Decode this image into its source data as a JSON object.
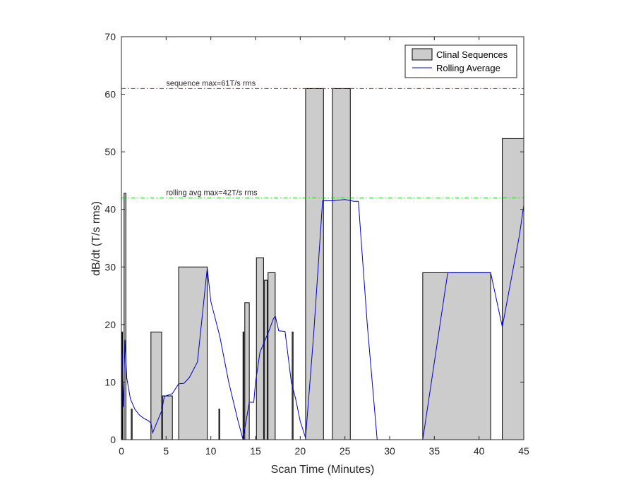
{
  "chart_data": {
    "type": "bar",
    "xlabel": "Scan Time (Minutes)",
    "ylabel": "dB/dt (T/s rms)",
    "xlim": [
      0,
      45
    ],
    "ylim": [
      0,
      70
    ],
    "xticks": [
      0,
      5,
      10,
      15,
      20,
      25,
      30,
      35,
      40,
      45
    ],
    "yticks": [
      0,
      10,
      20,
      30,
      40,
      50,
      60,
      70
    ],
    "grid": false,
    "legend_position": "top-right",
    "legend": [
      {
        "label": "Clinal Sequences",
        "kind": "patch"
      },
      {
        "label": "Rolling Average",
        "kind": "line"
      }
    ],
    "colors": {
      "bar_fill": "#cccccc",
      "bar_edge": "#000000",
      "rolling": "#0000cc",
      "seq_max_line": "#b03020",
      "avg_max_line": "#22cc22"
    },
    "sequences": [
      {
        "start": 0.05,
        "end": 0.1,
        "value": 18.7
      },
      {
        "start": 0.3,
        "end": 0.5,
        "value": 42.8
      },
      {
        "start": 1.1,
        "end": 1.2,
        "value": 5.3
      },
      {
        "start": 3.3,
        "end": 4.5,
        "value": 18.7
      },
      {
        "start": 4.6,
        "end": 5.7,
        "value": 7.6
      },
      {
        "start": 6.4,
        "end": 9.6,
        "value": 30
      },
      {
        "start": 10.9,
        "end": 11.0,
        "value": 5.3
      },
      {
        "start": 13.6,
        "end": 13.7,
        "value": 18.7
      },
      {
        "start": 13.8,
        "end": 14.3,
        "value": 23.8
      },
      {
        "start": 15.1,
        "end": 15.9,
        "value": 31.6
      },
      {
        "start": 16.0,
        "end": 16.3,
        "value": 27.7
      },
      {
        "start": 16.4,
        "end": 17.2,
        "value": 29
      },
      {
        "start": 19.1,
        "end": 19.2,
        "value": 18.7
      },
      {
        "start": 20.6,
        "end": 22.6,
        "value": 61
      },
      {
        "start": 23.6,
        "end": 25.6,
        "value": 61
      },
      {
        "start": 33.7,
        "end": 41.3,
        "value": 29
      },
      {
        "start": 42.6,
        "end": 45.0,
        "value": 52.3
      }
    ],
    "rolling_average": {
      "x": [
        0.05,
        0.2,
        0.4,
        0.5,
        0.6,
        1.0,
        1.5,
        2.0,
        2.5,
        3.0,
        3.3,
        3.5,
        4.5,
        4.8,
        5.7,
        6.4,
        7.0,
        7.6,
        8.5,
        9.6,
        10.0,
        11.0,
        12.0,
        13.0,
        13.6,
        14.3,
        14.8,
        15.0,
        15.5,
        16.5,
        17.0,
        17.2,
        17.6,
        18.3,
        19.0,
        19.5,
        20.0,
        20.6,
        21.5,
        22.5,
        22.7,
        23.6,
        25.0,
        26.0,
        26.5,
        27.5,
        28.6,
        29.5,
        33.7,
        36.5,
        41.3,
        42.6,
        44.5,
        45.0
      ],
      "y": [
        15,
        5.7,
        17.3,
        13.7,
        10.7,
        7.1,
        5.3,
        4.3,
        3.7,
        3.3,
        2.9,
        1.2,
        5.0,
        7.5,
        8.0,
        9.7,
        9.8,
        10.8,
        13.5,
        29.8,
        24.0,
        18.0,
        10.0,
        3.5,
        0.0,
        6.5,
        6.5,
        10.0,
        15.2,
        18.9,
        21.0,
        21.5,
        18.9,
        18.8,
        10.0,
        7.0,
        3.2,
        0.3,
        18.2,
        41.5,
        41.5,
        41.5,
        41.7,
        41.4,
        41.4,
        20.0,
        0.0,
        0.0,
        0.0,
        29.0,
        29.0,
        19.6,
        35.4,
        40.7
      ]
    },
    "reference_lines": [
      {
        "y": 61,
        "label": "sequence max=61T/s rms",
        "color": "#b03020",
        "label_x": 5
      },
      {
        "y": 42,
        "label": "rolling avg max=42T/s rms",
        "color": "#22cc22",
        "label_x": 5
      }
    ]
  }
}
